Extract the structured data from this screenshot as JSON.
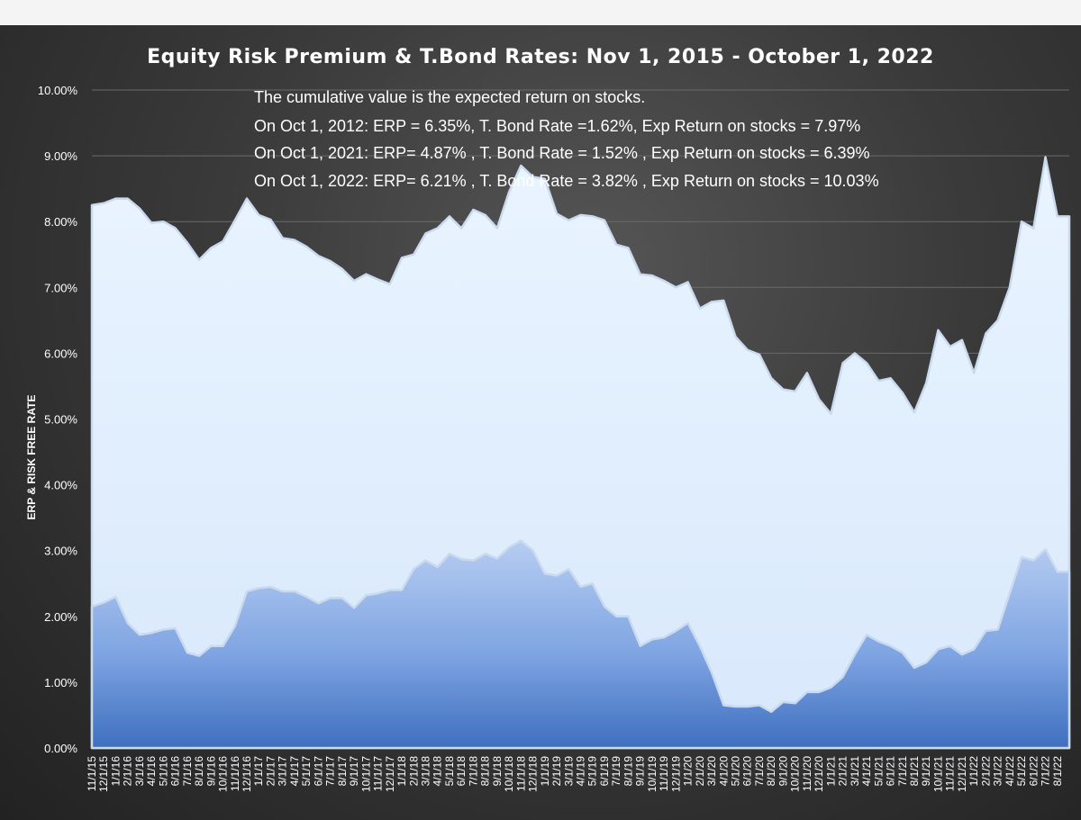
{
  "chart_data": {
    "type": "area",
    "title": "Equity Risk Premium & T.Bond Rates: Nov 1, 2015 - October 1, 2022",
    "ylabel": "ERP  & RISK FREE RATE",
    "xlabel": "",
    "ylim": [
      0,
      0.1
    ],
    "yticks": [
      "0.00%",
      "1.00%",
      "2.00%",
      "3.00%",
      "4.00%",
      "5.00%",
      "6.00%",
      "7.00%",
      "8.00%",
      "9.00%",
      "10.00%"
    ],
    "grid": true,
    "legend": "none",
    "categories": [
      "11/1/15",
      "12/1/15",
      "1/1/16",
      "2/1/16",
      "3/1/16",
      "4/1/16",
      "5/1/16",
      "6/1/16",
      "7/1/16",
      "8/1/16",
      "9/1/16",
      "10/1/16",
      "11/1/16",
      "12/1/16",
      "1/1/17",
      "2/1/17",
      "3/1/17",
      "4/1/17",
      "5/1/17",
      "6/1/17",
      "7/1/17",
      "8/1/17",
      "9/1/17",
      "10/1/17",
      "11/1/17",
      "12/1/17",
      "1/1/18",
      "2/1/18",
      "3/1/18",
      "4/1/18",
      "5/1/18",
      "6/1/18",
      "7/1/18",
      "8/1/18",
      "9/1/18",
      "10/1/18",
      "11/1/18",
      "12/1/18",
      "1/1/19",
      "2/1/19",
      "3/1/19",
      "4/1/19",
      "5/1/19",
      "6/1/19",
      "7/1/19",
      "8/1/19",
      "9/1/19",
      "10/1/19",
      "11/1/19",
      "12/1/19",
      "1/1/20",
      "2/1/20",
      "3/1/20",
      "4/1/20",
      "5/1/20",
      "6/1/20",
      "7/1/20",
      "8/1/20",
      "9/1/20",
      "10/1/20",
      "11/1/20",
      "12/1/20",
      "1/1/21",
      "2/1/21",
      "3/1/21",
      "4/1/21",
      "5/1/21",
      "6/1/21",
      "7/1/21",
      "8/1/21",
      "9/1/21",
      "10/1/21",
      "11/1/21",
      "12/1/21",
      "1/1/22",
      "2/1/22",
      "3/1/22",
      "4/1/22",
      "5/1/22",
      "6/1/22",
      "7/1/22",
      "8/1/22",
      "9/1/22"
    ],
    "xticks": [
      "11/1/15",
      "12/1/15",
      "1/1/16",
      "2/1/16",
      "3/1/16",
      "4/1/16",
      "5/1/16",
      "6/1/16",
      "7/1/16",
      "8/1/16",
      "9/1/16",
      "10/1/16",
      "11/1/16",
      "12/1/16",
      "1/1/17",
      "2/1/17",
      "3/1/17",
      "4/1/17",
      "5/1/17",
      "6/1/17",
      "7/1/17",
      "8/1/17",
      "9/1/17",
      "10/1/17",
      "11/1/17",
      "12/1/17",
      "1/1/18",
      "2/1/18",
      "3/1/18",
      "4/1/18",
      "5/1/18",
      "6/1/18",
      "7/1/18",
      "8/1/18",
      "9/1/18",
      "10/1/18",
      "11/1/18",
      "12/1/18",
      "1/1/19",
      "2/1/19",
      "3/1/19",
      "4/1/19",
      "5/1/19",
      "6/1/19",
      "7/1/19",
      "8/1/19",
      "9/1/19",
      "10/1/19",
      "11/1/19",
      "12/1/19",
      "1/1/20",
      "2/1/20",
      "3/1/20",
      "4/1/20",
      "5/1/20",
      "6/1/20",
      "7/1/20",
      "8/1/20",
      "9/1/20",
      "10/1/20",
      "11/1/20",
      "12/1/20",
      "1/1/21",
      "2/1/21",
      "3/1/21",
      "4/1/21",
      "5/1/21",
      "6/1/21",
      "7/1/21",
      "8/1/21",
      "9/1/21",
      "10/1/21",
      "11/1/21",
      "12/1/21",
      "1/1/22",
      "2/1/22",
      "3/1/22",
      "4/1/22",
      "5/1/22",
      "6/1/22",
      "7/1/22",
      "8/1/22"
    ],
    "series": [
      {
        "name": "",
        "role": "T.Bond Rate",
        "color": "#4a7fd0",
        "values": [
          0.0215,
          0.0221,
          0.023,
          0.019,
          0.0172,
          0.0175,
          0.018,
          0.0182,
          0.0145,
          0.014,
          0.0155,
          0.0155,
          0.0185,
          0.0238,
          0.0243,
          0.0245,
          0.0238,
          0.0238,
          0.023,
          0.022,
          0.0228,
          0.0228,
          0.0213,
          0.0232,
          0.0235,
          0.024,
          0.024,
          0.0272,
          0.0285,
          0.0275,
          0.0295,
          0.0287,
          0.0285,
          0.0295,
          0.0288,
          0.0305,
          0.0315,
          0.03,
          0.0265,
          0.0262,
          0.0272,
          0.0245,
          0.025,
          0.0215,
          0.02,
          0.02,
          0.0155,
          0.0165,
          0.0168,
          0.0178,
          0.019,
          0.0155,
          0.0115,
          0.0065,
          0.0063,
          0.0063,
          0.0065,
          0.0055,
          0.007,
          0.0068,
          0.0085,
          0.0085,
          0.0092,
          0.0108,
          0.0142,
          0.0172,
          0.0162,
          0.0155,
          0.0145,
          0.0122,
          0.013,
          0.015,
          0.0155,
          0.0142,
          0.015,
          0.0178,
          0.018,
          0.0235,
          0.029,
          0.0285,
          0.0302,
          0.0268,
          0.0268
        ]
      },
      {
        "name": "",
        "role": "Expected return on stocks (ERP + T.Bond Rate)",
        "color": "#e6f2ff",
        "values": [
          0.0825,
          0.0828,
          0.0835,
          0.0835,
          0.082,
          0.0798,
          0.08,
          0.079,
          0.0768,
          0.0742,
          0.076,
          0.077,
          0.0802,
          0.0835,
          0.081,
          0.0803,
          0.0775,
          0.0772,
          0.0762,
          0.0748,
          0.074,
          0.0728,
          0.071,
          0.072,
          0.0712,
          0.0705,
          0.0745,
          0.075,
          0.0782,
          0.079,
          0.0808,
          0.079,
          0.0818,
          0.081,
          0.079,
          0.0845,
          0.0885,
          0.0868,
          0.0865,
          0.0812,
          0.0802,
          0.081,
          0.0808,
          0.0802,
          0.0765,
          0.076,
          0.072,
          0.0718,
          0.071,
          0.07,
          0.0708,
          0.0668,
          0.0678,
          0.068,
          0.0625,
          0.0605,
          0.0598,
          0.0562,
          0.0545,
          0.0542,
          0.057,
          0.053,
          0.0508,
          0.0585,
          0.06,
          0.0585,
          0.0558,
          0.0562,
          0.054,
          0.051,
          0.0555,
          0.0635,
          0.061,
          0.062,
          0.057,
          0.063,
          0.065,
          0.07,
          0.08,
          0.079,
          0.0898,
          0.0808,
          0.0808
        ]
      }
    ],
    "annotations": [
      "The cumulative value is the expected return on stocks.",
      "On Oct 1, 2012: ERP = 6.35%, T. Bond Rate =1.62%, Exp Return on stocks = 7.97%",
      "On Oct 1, 2021: ERP= 4.87% , T. Bond Rate = 1.52% , Exp Return on stocks = 6.39%",
      "On Oct 1, 2022: ERP= 6.21% , T. Bond Rate = 3.82% , Exp Return on stocks = 10.03%"
    ]
  }
}
